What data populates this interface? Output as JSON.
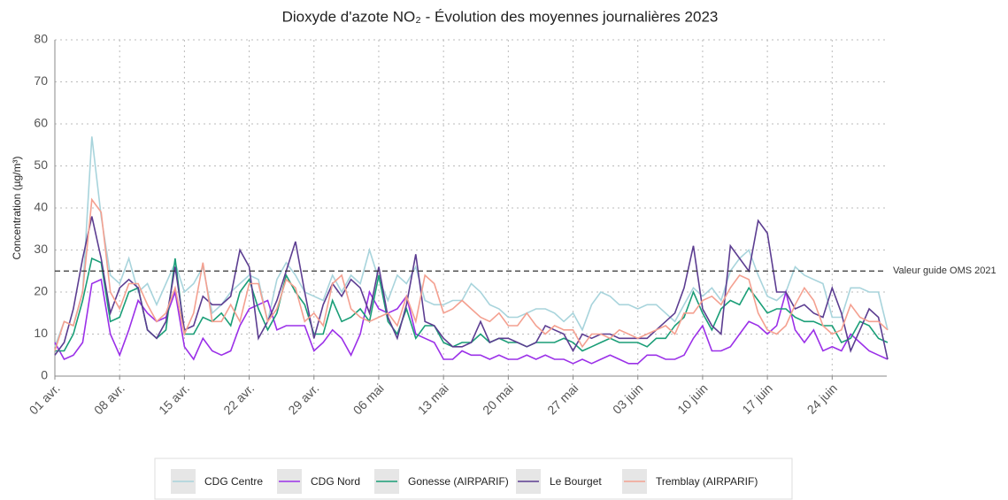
{
  "chart_data": {
    "type": "line",
    "title": "Dioxyde d'azote NO₂ - Évolution des moyennes journalières 2023",
    "y_label": "Concentration (µg/m³)",
    "categories": [
      "01 avr.",
      null,
      null,
      null,
      null,
      null,
      null,
      "08 avr.",
      null,
      null,
      null,
      null,
      null,
      null,
      "15 avr.",
      null,
      null,
      null,
      null,
      null,
      null,
      "22 avr.",
      null,
      null,
      null,
      null,
      null,
      null,
      "29 avr.",
      null,
      null,
      null,
      null,
      null,
      null,
      "06 mai",
      null,
      null,
      null,
      null,
      null,
      null,
      "13 mai",
      null,
      null,
      null,
      null,
      null,
      null,
      "20 mai",
      null,
      null,
      null,
      null,
      null,
      null,
      "27 mai",
      null,
      null,
      null,
      null,
      null,
      null,
      "03 juin",
      null,
      null,
      null,
      null,
      null,
      null,
      "10 juin",
      null,
      null,
      null,
      null,
      null,
      null,
      "17 juin",
      null,
      null,
      null,
      null,
      null,
      null,
      "24 juin",
      null,
      null,
      null,
      null,
      null,
      null
    ],
    "series": [
      {
        "name": "CDG Centre",
        "color": "#a8d4dc",
        "values": [
          7,
          13,
          12,
          20,
          57,
          38,
          24,
          22,
          28,
          20,
          22,
          17,
          22,
          27,
          20,
          22,
          26,
          15,
          17,
          20,
          22,
          24,
          23,
          13,
          23,
          27,
          24,
          20,
          19,
          18,
          24,
          20,
          24,
          22,
          30,
          23,
          18,
          24,
          22,
          26,
          18,
          17,
          17,
          18,
          18,
          22,
          20,
          17,
          16,
          14,
          14,
          15,
          16,
          16,
          15,
          13,
          15,
          11,
          17,
          20,
          19,
          17,
          17,
          16,
          17,
          17,
          15,
          13,
          17,
          21,
          19,
          21,
          18,
          25,
          28,
          30,
          24,
          19,
          18,
          20,
          26,
          24,
          23,
          22,
          14,
          14,
          21,
          21,
          20,
          20,
          11
        ]
      },
      {
        "name": "CDG Nord",
        "color": "#9b30e8",
        "values": [
          8,
          4,
          5,
          8,
          22,
          23,
          10,
          5,
          11,
          18,
          15,
          13,
          14,
          20,
          7,
          4,
          9,
          6,
          5,
          6,
          12,
          16,
          17,
          18,
          11,
          12,
          12,
          12,
          6,
          8,
          11,
          9,
          5,
          10,
          20,
          16,
          15,
          16,
          19,
          10,
          9,
          8,
          4,
          4,
          6,
          5,
          5,
          4,
          5,
          4,
          4,
          5,
          4,
          5,
          4,
          4,
          3,
          4,
          3,
          4,
          5,
          4,
          3,
          3,
          5,
          5,
          4,
          4,
          5,
          9,
          12,
          6,
          6,
          7,
          10,
          13,
          12,
          10,
          12,
          20,
          11,
          8,
          11,
          6,
          7,
          6,
          10,
          8,
          6,
          5,
          4
        ]
      },
      {
        "name": "Gonesse (AIRPARIF)",
        "color": "#1a9e77",
        "values": [
          6,
          6,
          10,
          18,
          28,
          27,
          13,
          14,
          20,
          21,
          11,
          9,
          11,
          28,
          10,
          10,
          14,
          13,
          15,
          12,
          20,
          23,
          16,
          11,
          15,
          24,
          20,
          17,
          10,
          10,
          18,
          13,
          14,
          16,
          13,
          24,
          13,
          10,
          16,
          9,
          12,
          12,
          8,
          7,
          8,
          8,
          10,
          8,
          9,
          8,
          8,
          7,
          8,
          8,
          8,
          9,
          8,
          6,
          7,
          8,
          9,
          8,
          8,
          8,
          7,
          9,
          9,
          12,
          14,
          20,
          15,
          11,
          16,
          18,
          17,
          21,
          18,
          15,
          16,
          16,
          14,
          13,
          13,
          12,
          12,
          8,
          9,
          13,
          12,
          9,
          8
        ]
      },
      {
        "name": "Le Bourget",
        "color": "#5c3d91",
        "values": [
          5,
          8,
          16,
          28,
          38,
          28,
          15,
          21,
          23,
          21,
          11,
          9,
          13,
          26,
          11,
          12,
          19,
          17,
          17,
          19,
          30,
          26,
          9,
          13,
          18,
          25,
          32,
          20,
          9,
          17,
          22,
          19,
          23,
          21,
          15,
          26,
          14,
          9,
          17,
          29,
          13,
          12,
          9,
          7,
          7,
          8,
          13,
          8,
          9,
          9,
          8,
          7,
          8,
          12,
          11,
          10,
          6,
          10,
          9,
          10,
          10,
          9,
          9,
          9,
          9,
          11,
          13,
          15,
          21,
          31,
          16,
          12,
          10,
          31,
          28,
          25,
          37,
          34,
          20,
          20,
          16,
          17,
          15,
          14,
          21,
          15,
          6,
          11,
          16,
          14,
          4
        ]
      },
      {
        "name": "Tremblay (AIRPARIF)",
        "color": "#f4a090",
        "values": [
          6,
          13,
          12,
          20,
          42,
          39,
          20,
          16,
          22,
          22,
          17,
          13,
          15,
          21,
          10,
          15,
          27,
          13,
          13,
          17,
          13,
          22,
          22,
          13,
          16,
          23,
          21,
          13,
          15,
          12,
          22,
          24,
          16,
          14,
          13,
          14,
          15,
          12,
          19,
          13,
          24,
          22,
          15,
          16,
          18,
          16,
          14,
          13,
          15,
          12,
          12,
          15,
          12,
          10,
          12,
          11,
          11,
          7,
          10,
          10,
          9,
          11,
          10,
          9,
          10,
          11,
          12,
          10,
          15,
          15,
          18,
          19,
          17,
          21,
          24,
          23,
          15,
          11,
          10,
          12,
          17,
          21,
          18,
          12,
          10,
          11,
          17,
          14,
          13,
          13,
          11
        ]
      }
    ],
    "reference_line": {
      "value": 25,
      "label": "Valeur guide OMS 2021"
    },
    "ylim": [
      0,
      80
    ],
    "yticks": [
      0,
      10,
      20,
      30,
      40,
      50,
      60,
      70,
      80
    ],
    "grid": true,
    "legend": "bottom"
  }
}
